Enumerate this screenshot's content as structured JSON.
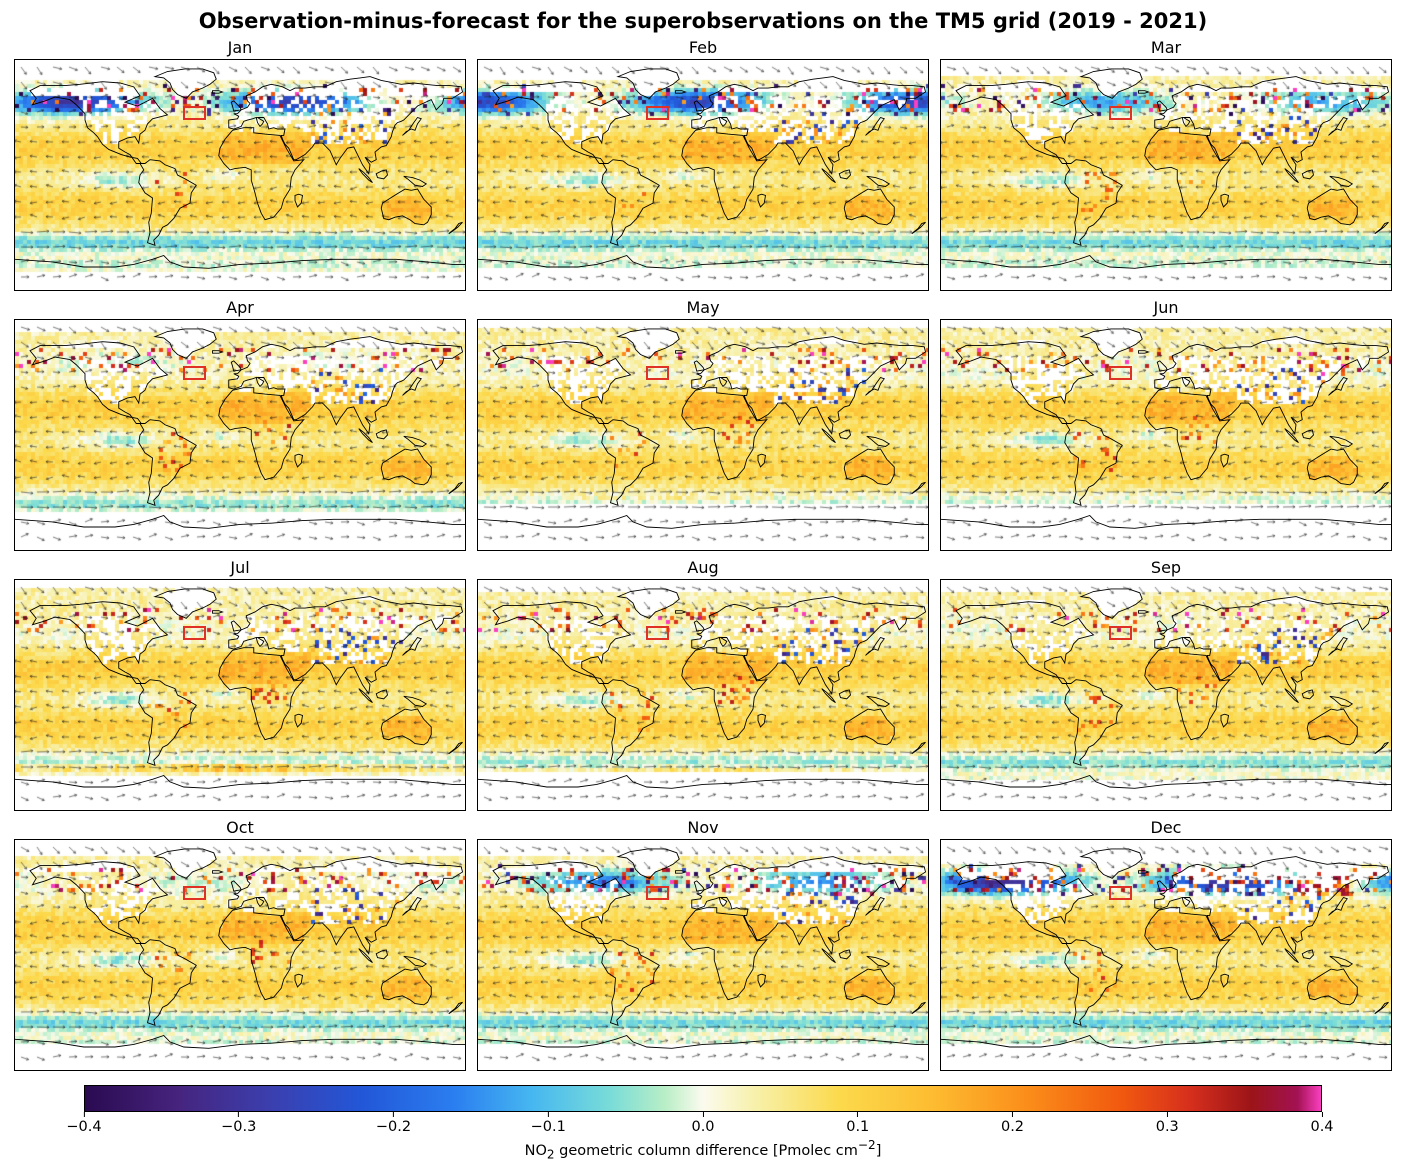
{
  "title": "Observation-minus-forecast for the superobservations on the TM5 grid (2019 - 2021)",
  "chart_data": {
    "type": "heatmap",
    "layout": "4x3 grid of equirectangular world maps, one per month, with wind streamline/quiver arrows overlaid and a shared horizontal colorbar at the bottom",
    "months": [
      "Jan",
      "Feb",
      "Mar",
      "Apr",
      "May",
      "Jun",
      "Jul",
      "Aug",
      "Sep",
      "Oct",
      "Nov",
      "Dec"
    ],
    "colorbar": {
      "min": -0.4,
      "max": 0.4,
      "ticks": [
        "−0.4",
        "−0.3",
        "−0.2",
        "−0.1",
        "0.0",
        "0.1",
        "0.2",
        "0.3",
        "0.4"
      ],
      "label_parts": {
        "pre": "NO",
        "sub": "2",
        "mid": " geometric column difference [Pmolec cm",
        "sup": "−2",
        "post": "]"
      },
      "stops": [
        {
          "v": -0.4,
          "c": "#2a0a50"
        },
        {
          "v": -0.34,
          "c": "#46247e"
        },
        {
          "v": -0.28,
          "c": "#3b3fae"
        },
        {
          "v": -0.22,
          "c": "#2257d8"
        },
        {
          "v": -0.16,
          "c": "#2b7ff0"
        },
        {
          "v": -0.11,
          "c": "#47b8f0"
        },
        {
          "v": -0.06,
          "c": "#79dcd8"
        },
        {
          "v": -0.025,
          "c": "#b8eec6"
        },
        {
          "v": 0.0,
          "c": "#fbfbee"
        },
        {
          "v": 0.035,
          "c": "#f7f0a8"
        },
        {
          "v": 0.09,
          "c": "#fcd94b"
        },
        {
          "v": 0.15,
          "c": "#fdbb30"
        },
        {
          "v": 0.21,
          "c": "#fb8d1a"
        },
        {
          "v": 0.27,
          "c": "#f1590f"
        },
        {
          "v": 0.315,
          "c": "#d62f1d"
        },
        {
          "v": 0.355,
          "c": "#9c1418"
        },
        {
          "v": 0.385,
          "c": "#a31253"
        },
        {
          "v": 0.4,
          "c": "#fa3fc0"
        }
      ]
    },
    "annotation_box": {
      "description": "Red rectangle drawn at the same North-Atlantic location in every monthly panel",
      "color": "#e03127",
      "lon_min": -46,
      "lon_max": -27,
      "lat_min": 43,
      "lat_max": 54
    },
    "panels": [
      {
        "label": "Jan",
        "pattern": "Strong negative (blue) band 45-70N with scattered strong positive (red) cells 55-65N over North America and Eurasia; no data poleward of ~73N and over high-latitude land; subtropical oceans weakly positive (yellow); Southern Ocean weakly negative (cyan).",
        "p": {
          "nw": 1.0,
          "red": 0.95,
          "blue": 0.2,
          "so": 0.85,
          "ncool": 0,
          "ss": 0,
          "ssLat": -57,
          "ndN": 73,
          "ndS": -76,
          "lwN": 62,
          "gap": 0.5,
          "afr": 0,
          "sam": 0.15,
          "easia": 0
        }
      },
      {
        "label": "Feb",
        "pattern": "Negative band 45-70N, dense red positive cells ~55-65N over Siberia and N Europe; yellow subtropics; cyan Southern Ocean.",
        "p": {
          "nw": 0.9,
          "red": 1.0,
          "blue": 0.25,
          "so": 0.8,
          "ncool": 0,
          "ss": 0,
          "ssLat": -57,
          "ndN": 75,
          "ndS": -74,
          "lwN": 64,
          "gap": 0.5,
          "afr": 0,
          "sam": 0.15,
          "easia": 0
        }
      },
      {
        "label": "Mar",
        "pattern": "Weaker negative band in NH high latitudes with scattered red cells ~60N; mostly pale yellow elsewhere.",
        "p": {
          "nw": 0.5,
          "red": 0.55,
          "blue": 0.3,
          "so": 0.8,
          "ncool": 0,
          "ss": 0,
          "ssLat": -57,
          "ndN": 76,
          "ndS": -72,
          "lwN": 66,
          "gap": 0.5,
          "afr": 0.1,
          "sam": 0.1,
          "easia": 0
        }
      },
      {
        "label": "Apr",
        "pattern": "Mild field; mixed +/- speckles over Asia; yellow subtropics; streamlines and cyan band over Southern Ocean; no data south of ~60S.",
        "p": {
          "nw": 0.18,
          "red": 0.25,
          "blue": 0.45,
          "so": 0.7,
          "ncool": 0.1,
          "ss": 0.15,
          "ssLat": -50,
          "ndN": 80,
          "ndS": -60,
          "lwN": 68,
          "gap": 0.55,
          "afr": 0.15,
          "sam": 0.25,
          "easia": 0
        }
      },
      {
        "label": "May",
        "pattern": "Positive speckles over central Africa, negative speckles over Asia; orange speckle row near 50S; no data south of ~53S.",
        "p": {
          "nw": 0.06,
          "red": 0.15,
          "blue": 0.55,
          "so": 0.55,
          "ncool": 0.2,
          "ss": 0.35,
          "ssLat": -50,
          "ndN": 84,
          "ndS": -53,
          "lwN": 72,
          "gap": 0.6,
          "afr": 0.45,
          "sam": 0.15,
          "easia": 0
        }
      },
      {
        "label": "Jun",
        "pattern": "Mild yellow field; blue speckles over central/east Asia with some orange near NE Asia; no data south of ~53S.",
        "p": {
          "nw": 0.05,
          "red": 0.2,
          "blue": 0.6,
          "so": 0.5,
          "ncool": 0.3,
          "ss": 0.2,
          "ssLat": -52,
          "ndN": 85,
          "ndS": -53,
          "lwN": 72,
          "gap": 0.6,
          "afr": 0.35,
          "sam": 0.1,
          "easia": 0.15
        }
      },
      {
        "label": "Jul",
        "pattern": "Mostly yellow; strong orange/red positive streak along the ~55-60S storm track; cyan NH ocean bands; no data south of ~64S.",
        "p": {
          "nw": 0.05,
          "red": 0.1,
          "blue": 0.35,
          "so": 0.55,
          "ncool": 0.3,
          "ss": 1.0,
          "ssLat": -57,
          "ndN": 85,
          "ndS": -64,
          "lwN": 75,
          "gap": 0.55,
          "afr": 0.15,
          "sam": 0.1,
          "easia": 0
        }
      },
      {
        "label": "Aug",
        "pattern": "Similar to Jul with weaker southern storm-track positive streak; mild elsewhere.",
        "p": {
          "nw": 0.05,
          "red": 0.1,
          "blue": 0.3,
          "so": 0.6,
          "ncool": 0.3,
          "ss": 0.45,
          "ssLat": -58,
          "ndN": 82,
          "ndS": -61,
          "lwN": 73,
          "gap": 0.5,
          "afr": 0.15,
          "sam": 0.1,
          "easia": 0
        }
      },
      {
        "label": "Sep",
        "pattern": "Weak, mostly pale yellow field; cyan plumes off equatorial west coasts; cyan Southern Ocean band.",
        "p": {
          "nw": 0.08,
          "red": 0.08,
          "blue": 0.25,
          "so": 0.7,
          "ncool": 0.25,
          "ss": 0.1,
          "ssLat": -58,
          "ndN": 80,
          "ndS": -67,
          "lwN": 70,
          "gap": 0.4,
          "afr": 0.1,
          "sam": 0.15,
          "easia": 0
        }
      },
      {
        "label": "Oct",
        "pattern": "Yellow-dominant; orange positive speckles over South America; cyan Southern Ocean; data extends far south.",
        "p": {
          "nw": 0.15,
          "red": 0.15,
          "blue": 0.25,
          "so": 0.8,
          "ncool": 0.1,
          "ss": 0,
          "ssLat": -57,
          "ndN": 78,
          "ndS": -70,
          "lwN": 66,
          "gap": 0.45,
          "afr": 0.1,
          "sam": 0.45,
          "easia": 0
        }
      },
      {
        "label": "Nov",
        "pattern": "Negative (blue/purple) band returns at 55-75N with some positive cells along the Arctic coast; yellow subtropics.",
        "p": {
          "nw": 0.6,
          "red": 0.35,
          "blue": 0.25,
          "so": 0.8,
          "ncool": 0,
          "ss": 0,
          "ssLat": -57,
          "ndN": 76,
          "ndS": -71,
          "lwN": 64,
          "gap": 0.5,
          "afr": 0,
          "sam": 0.2,
          "easia": 0.1
        }
      },
      {
        "label": "Dec",
        "pattern": "Strongest negative (blue/purple) band over N America, N Atlantic and Siberia; strong positive (red/magenta) patch over NE Asia ~50-58N; no data poleward of ~70N.",
        "p": {
          "nw": 1.1,
          "red": 0.8,
          "blue": 0.2,
          "so": 0.85,
          "ncool": 0,
          "ss": 0,
          "ssLat": -57,
          "ndN": 71,
          "ndS": -70,
          "lwN": 60,
          "gap": 0.5,
          "afr": 0,
          "sam": 0.15,
          "easia": 1.0
        }
      }
    ]
  }
}
